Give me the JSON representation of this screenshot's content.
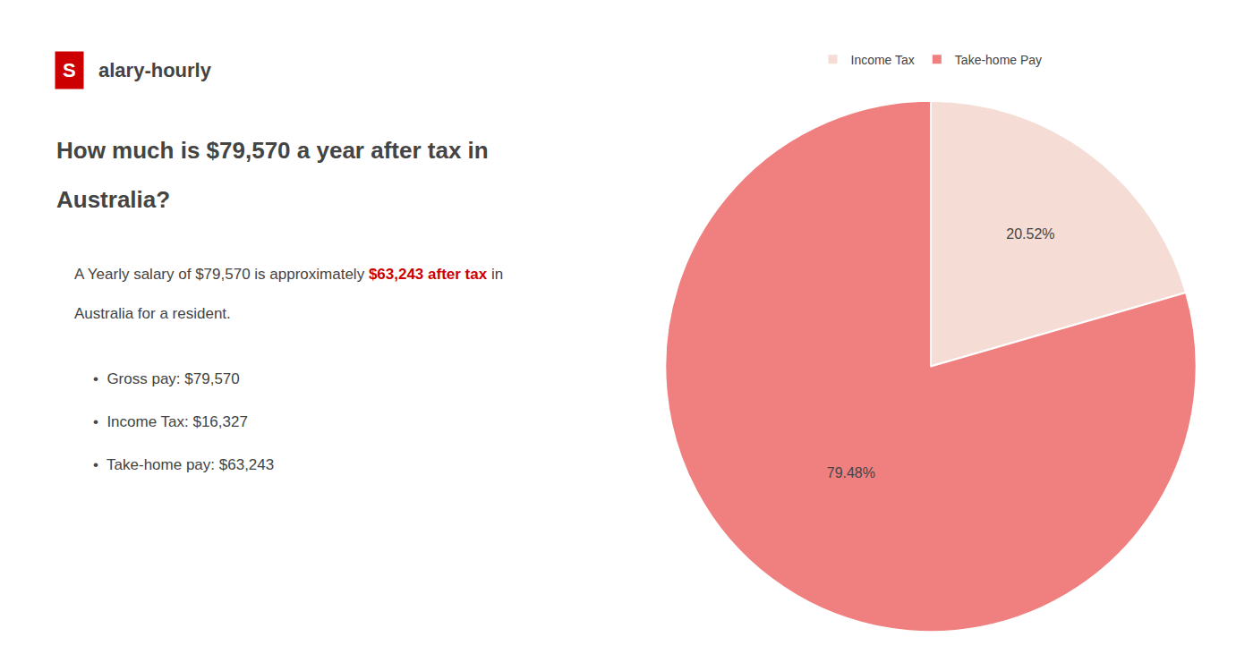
{
  "chart_data": {
    "type": "pie",
    "logo": {
      "text": "S",
      "color": "#cc0000"
    },
    "brand": "alary-hourly",
    "title": [
      "How much is $79,570 a year after tax in",
      "Australia?"
    ],
    "summary": [
      [
        {
          "text": "A Yearly salary of $79,570 is approximately "
        },
        {
          "text": "$63,243 after tax",
          "color": "#cc0000"
        },
        {
          "text": " in"
        }
      ],
      [
        {
          "text": "Australia for a resident."
        }
      ]
    ],
    "bullets": [
      "•  Gross pay: $79,570",
      "•  Income Tax: $16,327",
      "•  Take-home pay: $63,243"
    ],
    "categories": [
      "Income Tax",
      "Take-home Pay"
    ],
    "values": [
      20.52,
      79.48
    ],
    "value_labels": [
      "20.52%",
      "79.48%"
    ],
    "colors": [
      "#f5ddd5",
      "#f08080"
    ],
    "data_labels": true,
    "legend": "top"
  }
}
